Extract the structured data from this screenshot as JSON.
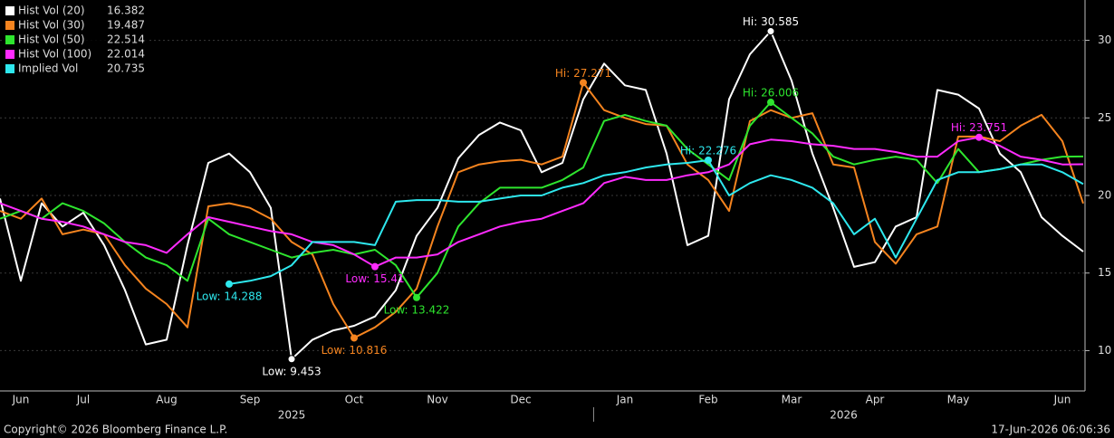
{
  "chart_data": {
    "type": "line",
    "categories": [
      null,
      "Jun",
      null,
      null,
      "Jul",
      null,
      null,
      null,
      "Aug",
      null,
      null,
      null,
      "Sep",
      null,
      null,
      null,
      null,
      "Oct",
      null,
      null,
      null,
      "Nov",
      null,
      null,
      null,
      "Dec",
      null,
      null,
      null,
      null,
      "Jan",
      null,
      null,
      null,
      "Feb",
      null,
      null,
      null,
      "Mar",
      null,
      null,
      null,
      "Apr",
      null,
      null,
      null,
      "May",
      null,
      null,
      null,
      null,
      "Jun",
      null
    ],
    "xgroups": [
      {
        "label": "2025",
        "start": 0,
        "end": 28
      },
      {
        "label": "2026",
        "start": 29,
        "end": 52
      }
    ],
    "series": [
      {
        "name": "Hist Vol (20)",
        "color": "#ffffff",
        "values": [
          19.8,
          14.5,
          19.5,
          18,
          18.9,
          16.8,
          13.9,
          10.4,
          10.7,
          16.8,
          22.1,
          22.7,
          21.5,
          19.2,
          9.453,
          10.7,
          11.3,
          11.6,
          12.2,
          13.9,
          17.4,
          19.2,
          22.4,
          23.9,
          24.7,
          24.2,
          21.5,
          22.1,
          26.2,
          28.5,
          27.1,
          26.8,
          22.7,
          16.8,
          17.4,
          26.2,
          29.1,
          30.585,
          27.4,
          22.7,
          19.2,
          15.4,
          15.7,
          18,
          18.6,
          26.8,
          26.5,
          25.6,
          22.7,
          21.5,
          18.6,
          17.4,
          16.382
        ]
      },
      {
        "name": "Hist Vol (30)",
        "color": "#f5841f",
        "values": [
          19,
          18.5,
          19.8,
          17.5,
          17.8,
          17.5,
          15.5,
          14,
          13,
          11.5,
          19.3,
          19.5,
          19.2,
          18.5,
          17,
          16.2,
          13,
          10.816,
          11.5,
          12.5,
          14,
          18,
          21.5,
          22,
          22.2,
          22.3,
          22,
          22.5,
          27.271,
          25.5,
          25,
          24.6,
          24.5,
          22,
          21,
          19,
          24.8,
          25.5,
          25,
          25.3,
          22,
          21.8,
          17,
          15.6,
          17.5,
          18,
          23.8,
          23.8,
          23.5,
          24.5,
          25.2,
          23.5,
          19.487
        ]
      },
      {
        "name": "Hist Vol (50)",
        "color": "#2ee52e",
        "values": [
          18.5,
          19,
          18.5,
          19.5,
          19,
          18.2,
          17,
          16,
          15.5,
          14.5,
          18.5,
          17.5,
          17,
          16.5,
          16,
          16.3,
          16.5,
          16.2,
          16.5,
          15.5,
          13.422,
          15,
          18,
          19.5,
          20.5,
          20.5,
          20.5,
          21,
          21.8,
          24.8,
          25.2,
          24.8,
          24.5,
          23,
          22,
          21,
          24.5,
          26.006,
          25,
          24,
          22.5,
          22,
          22.3,
          22.5,
          22.3,
          20.8,
          23,
          21.5,
          21.7,
          22,
          22.3,
          22.5,
          22.514
        ]
      },
      {
        "name": "Hist Vol (100)",
        "color": "#ff2bff",
        "values": [
          19.5,
          19,
          18.5,
          18.3,
          18,
          17.5,
          17,
          16.8,
          16.3,
          17.5,
          18.6,
          18.3,
          18,
          17.7,
          17.5,
          17,
          16.8,
          16.2,
          15.41,
          16,
          16,
          16.2,
          17,
          17.5,
          18,
          18.3,
          18.5,
          19,
          19.5,
          20.8,
          21.2,
          21,
          21,
          21.3,
          21.5,
          22,
          23.3,
          23.6,
          23.5,
          23.3,
          23.2,
          23,
          23,
          22.8,
          22.5,
          22.5,
          23.5,
          23.751,
          23.2,
          22.5,
          22.3,
          22,
          22.014
        ]
      },
      {
        "name": "Implied Vol",
        "color": "#2ee8ee",
        "values": [
          null,
          null,
          null,
          null,
          null,
          null,
          null,
          null,
          null,
          null,
          null,
          14.288,
          14.5,
          14.8,
          15.5,
          17,
          17,
          17,
          16.8,
          19.6,
          19.7,
          19.7,
          19.6,
          19.6,
          19.8,
          20,
          20,
          20.5,
          20.8,
          21.3,
          21.5,
          21.8,
          22,
          22.1,
          22.276,
          20,
          20.8,
          21.3,
          21,
          20.5,
          19.5,
          17.5,
          18.5,
          16,
          18.5,
          21,
          21.5,
          21.5,
          21.7,
          22,
          22,
          21.5,
          20.735
        ]
      }
    ],
    "annotations": [
      {
        "text": "Low: 9.453",
        "series": 0,
        "index": 14
      },
      {
        "text": "Hi: 30.585",
        "series": 0,
        "index": 37
      },
      {
        "text": "Low: 10.816",
        "series": 1,
        "index": 17
      },
      {
        "text": "Hi: 27.271",
        "series": 1,
        "index": 28
      },
      {
        "text": "Low: 13.422",
        "series": 2,
        "index": 20
      },
      {
        "text": "Hi: 26.006",
        "series": 2,
        "index": 37
      },
      {
        "text": "Low: 15.41",
        "series": 3,
        "index": 18
      },
      {
        "text": "Hi: 23.751",
        "series": 3,
        "index": 47
      },
      {
        "text": "Low: 14.288",
        "series": 4,
        "index": 11
      },
      {
        "text": "Hi: 22.276",
        "series": 4,
        "index": 34
      }
    ],
    "ylim": [
      7.4,
      32.6
    ],
    "yticks": [
      10,
      15,
      20,
      25,
      30
    ],
    "grid": true,
    "legend": "top-left",
    "footer_left": "Copyright© 2026 Bloomberg Finance L.P.",
    "footer_right": "17-Jun-2026 06:06:36"
  }
}
